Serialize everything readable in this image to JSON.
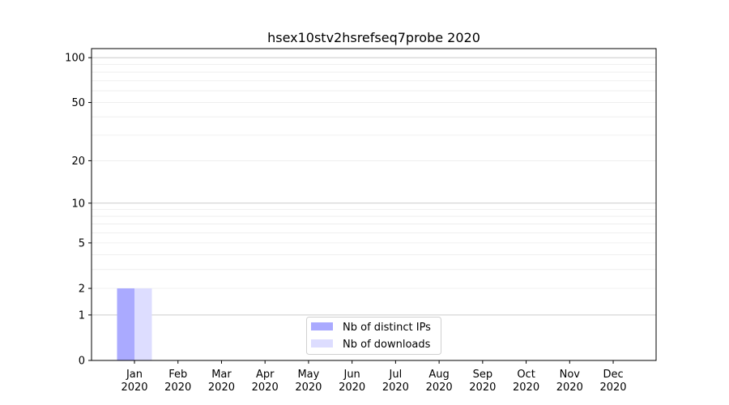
{
  "chart_data": {
    "type": "bar",
    "title": "hsex10stv2hsrefseq7probe 2020",
    "xlabel": "",
    "ylabel": "",
    "y_scale": "log(y+1)",
    "ylim": [
      0,
      115
    ],
    "y_ticks": [
      0,
      1,
      2,
      5,
      10,
      20,
      50,
      100
    ],
    "y_tick_labels": [
      "0",
      "1",
      "2",
      "5",
      "10",
      "20",
      "50",
      "100"
    ],
    "categories": [
      "Jan\n2020",
      "Feb\n2020",
      "Mar\n2020",
      "Apr\n2020",
      "May\n2020",
      "Jun\n2020",
      "Jul\n2020",
      "Aug\n2020",
      "Sep\n2020",
      "Oct\n2020",
      "Nov\n2020",
      "Dec\n2020"
    ],
    "category_months": [
      "Jan",
      "Feb",
      "Mar",
      "Apr",
      "May",
      "Jun",
      "Jul",
      "Aug",
      "Sep",
      "Oct",
      "Nov",
      "Dec"
    ],
    "category_year": "2020",
    "series": [
      {
        "name": "Nb of distinct IPs",
        "color": "#aaaaff",
        "values": [
          2,
          0,
          0,
          0,
          0,
          0,
          0,
          0,
          0,
          0,
          0,
          0
        ]
      },
      {
        "name": "Nb of downloads",
        "color": "#ddddff",
        "values": [
          2,
          0,
          0,
          0,
          0,
          0,
          0,
          0,
          0,
          0,
          0,
          0
        ]
      }
    ],
    "grid": true,
    "legend_position": "bottom-center"
  }
}
